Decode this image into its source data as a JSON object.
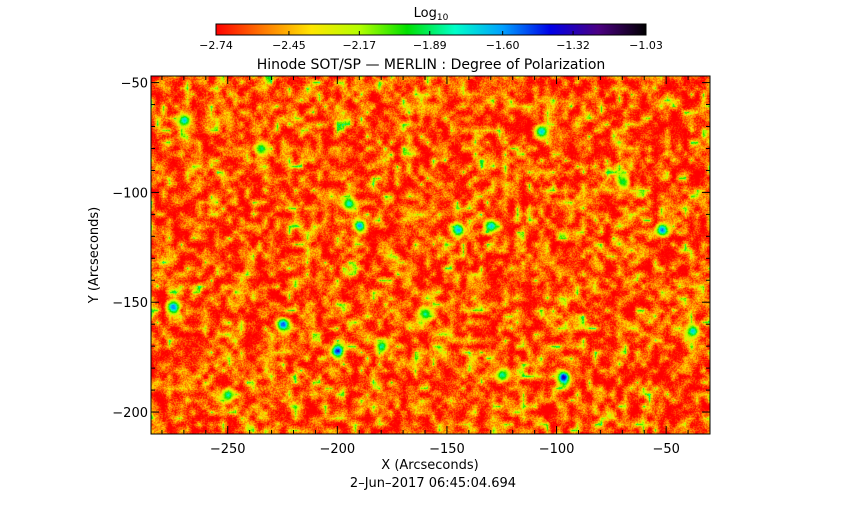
{
  "chart_data": {
    "type": "heatmap",
    "title": "Hinode SOT/SP — MERLIN : Degree of Polarization",
    "xlabel": "X (Arcseconds)",
    "ylabel": "Y (Arcseconds)",
    "timestamp": "2–Jun–2017 06:45:04.694",
    "xlim": [
      -285,
      -30
    ],
    "ylim": [
      -210,
      -47
    ],
    "xticks": [
      {
        "value": -250,
        "label": "−250"
      },
      {
        "value": -200,
        "label": "−200"
      },
      {
        "value": -150,
        "label": "−150"
      },
      {
        "value": -100,
        "label": "−100"
      },
      {
        "value": -50,
        "label": "−50"
      }
    ],
    "yticks": [
      {
        "value": -50,
        "label": "−50"
      },
      {
        "value": -100,
        "label": "−100"
      },
      {
        "value": -150,
        "label": "−150"
      },
      {
        "value": -200,
        "label": "−200"
      }
    ],
    "colorbar": {
      "label_base": "Log",
      "label_sub": "10",
      "range": [
        -2.74,
        -1.03
      ],
      "ticks": [
        {
          "value": -2.74,
          "label": "−2.74"
        },
        {
          "value": -2.45,
          "label": "−2.45"
        },
        {
          "value": -2.17,
          "label": "−2.17"
        },
        {
          "value": -1.89,
          "label": "−1.89"
        },
        {
          "value": -1.6,
          "label": "−1.60"
        },
        {
          "value": -1.32,
          "label": "−1.32"
        },
        {
          "value": -1.03,
          "label": "−1.03"
        }
      ],
      "colors": [
        "#ff0000",
        "#ff7a00",
        "#ffe600",
        "#b4ff00",
        "#00e000",
        "#00ffc8",
        "#00a0ff",
        "#0000e6",
        "#4b0082",
        "#000000"
      ]
    },
    "background_level": -2.6,
    "features": [
      {
        "x": -270,
        "y": -67,
        "level": -1.7
      },
      {
        "x": -275,
        "y": -152,
        "level": -1.55
      },
      {
        "x": -225,
        "y": -160,
        "level": -1.5
      },
      {
        "x": -200,
        "y": -172,
        "level": -1.4
      },
      {
        "x": -190,
        "y": -115,
        "level": -1.6
      },
      {
        "x": -195,
        "y": -105,
        "level": -1.75
      },
      {
        "x": -145,
        "y": -117,
        "level": -1.65
      },
      {
        "x": -130,
        "y": -115,
        "level": -1.7
      },
      {
        "x": -107,
        "y": -72,
        "level": -1.7
      },
      {
        "x": -97,
        "y": -184,
        "level": -1.3
      },
      {
        "x": -52,
        "y": -117,
        "level": -1.55
      },
      {
        "x": -38,
        "y": -163,
        "level": -1.7
      },
      {
        "x": -125,
        "y": -183,
        "level": -1.8
      },
      {
        "x": -160,
        "y": -155,
        "level": -1.85
      },
      {
        "x": -250,
        "y": -192,
        "level": -1.8
      },
      {
        "x": -235,
        "y": -80,
        "level": -1.9
      },
      {
        "x": -70,
        "y": -95,
        "level": -1.9
      },
      {
        "x": -180,
        "y": -170,
        "level": -1.8
      }
    ]
  }
}
